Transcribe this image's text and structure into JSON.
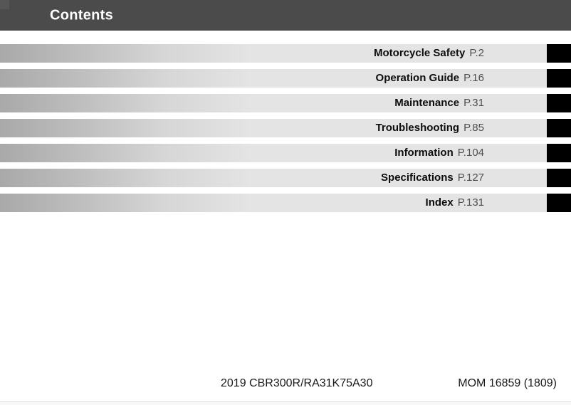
{
  "header": {
    "title": "Contents"
  },
  "toc": {
    "items": [
      {
        "label": "Motorcycle Safety",
        "page": "P.2"
      },
      {
        "label": "Operation Guide",
        "page": "P.16"
      },
      {
        "label": "Maintenance",
        "page": "P.31"
      },
      {
        "label": "Troubleshooting",
        "page": "P.85"
      },
      {
        "label": "Information",
        "page": "P.104"
      },
      {
        "label": "Specifications",
        "page": "P.127"
      },
      {
        "label": "Index",
        "page": "P.131"
      }
    ]
  },
  "footer": {
    "model": "2019 CBR300R/RA31K75A30",
    "code": "MOM 16859 (1809)"
  },
  "colors": {
    "header_bg": "#4b4b4b",
    "bar_start": "#a9a9a9",
    "bar_mid": "#d6d6d6",
    "bar_end": "#e4e4e4",
    "tab_bg": "#000000",
    "label_color": "#0d0d0d",
    "page_ref_color": "#4f4f4f",
    "divider_color": "#dcdcdc"
  }
}
